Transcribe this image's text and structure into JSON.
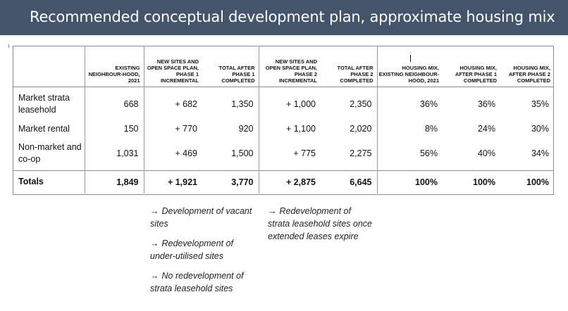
{
  "banner": {
    "title": "Recommended conceptual development plan, approximate housing mix"
  },
  "table": {
    "headers": [
      "",
      "EXISTING NEIGHBOUR-HOOD, 2021",
      "NEW SITES AND OPEN SPACE PLAN, PHASE 1 INCREMENTAL",
      "TOTAL AFTER PHASE 1 COMPLETED",
      "NEW SITES AND OPEN SPACE PLAN, PHASE 2 INCREMENTAL",
      "TOTAL AFTER PHASE 2 COMPLETED",
      "HOUSING MIX, EXISTING NEIGHBOUR-HOOD, 2021",
      "HOUSING MIX, AFTER PHASE 1 COMPLETED",
      "HOUSING MIX, AFTER PHASE 2 COMPLETED"
    ],
    "rows": [
      [
        "Market strata leasehold",
        "668",
        "+ 682",
        "1,350",
        "+ 1,000",
        "2,350",
        "36%",
        "36%",
        "35%"
      ],
      [
        "Market rental",
        "150",
        "+ 770",
        "920",
        "+ 1,100",
        "2,020",
        "8%",
        "24%",
        "30%"
      ],
      [
        "Non-market and co-op",
        "1,031",
        "+ 469",
        "1,500",
        "+ 775",
        "2,275",
        "56%",
        "40%",
        "34%"
      ]
    ],
    "totals": [
      "Totals",
      "1,849",
      "+ 1,921",
      "3,770",
      "+ 2,875",
      "6,645",
      "100%",
      "100%",
      "100%"
    ]
  },
  "notes": {
    "arrow": "→",
    "phase1": [
      "Development of vacant sites",
      "Redevelopment of under-utilised sites",
      "No redevelopment of strata leasehold sites"
    ],
    "phase2": [
      "Redevelopment of strata leasehold sites once extended leases expire"
    ]
  },
  "colors": {
    "banner": "#44546a",
    "banner_text": "#ffffff",
    "grid": "#8c8c8c"
  }
}
